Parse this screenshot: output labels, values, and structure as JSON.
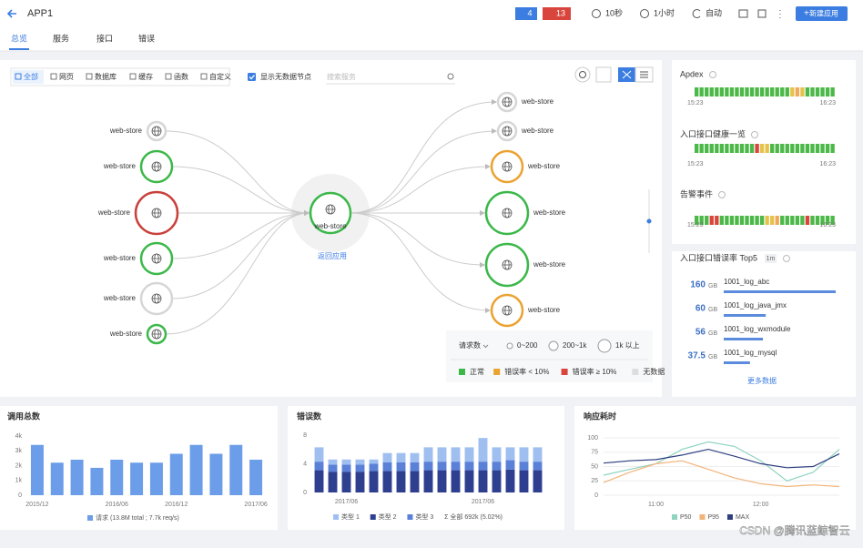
{
  "header": {
    "title": "APP1",
    "badge_info": "4",
    "badge_alert": "13",
    "refresh": "10秒",
    "range": "1小时",
    "auto": "自动",
    "new_button": "新建应用"
  },
  "tabs": [
    "总览",
    "服务",
    "接口",
    "错误"
  ],
  "topology": {
    "filters": [
      "全部",
      "网页",
      "数据库",
      "缓存",
      "函数",
      "自定义"
    ],
    "show_empty": "显示无数据节点",
    "search_placeholder": "搜索服务",
    "center": {
      "label": "web-store",
      "color": "#3cb84a"
    },
    "back": "返回应用",
    "left_nodes": [
      {
        "label": "web-store",
        "color": "#d6d6d6"
      },
      {
        "label": "web-store",
        "color": "#3cb84a"
      },
      {
        "label": "web-store",
        "color": "#c9413b"
      },
      {
        "label": "web-store",
        "color": "#3cb84a"
      },
      {
        "label": "web-store",
        "color": "#d6d6d6"
      },
      {
        "label": "web-store",
        "color": "#3cb84a"
      }
    ],
    "right_nodes": [
      {
        "label": "web-store",
        "color": "#d6d6d6"
      },
      {
        "label": "web-store",
        "color": "#d6d6d6"
      },
      {
        "label": "web-store",
        "color": "#eba22f"
      },
      {
        "label": "web-store",
        "color": "#3cb84a"
      },
      {
        "label": "web-store",
        "color": "#3cb84a"
      },
      {
        "label": "web-store",
        "color": "#eba22f"
      }
    ],
    "legend": {
      "metric": "请求数",
      "sizes": [
        "0~200",
        "200~1k",
        "1k 以上"
      ],
      "statuses": [
        {
          "label": "正常",
          "color": "#3cb84a"
        },
        {
          "label": "错误率 < 10%",
          "color": "#eba22f"
        },
        {
          "label": "错误率 ≥ 10%",
          "color": "#d9453d"
        },
        {
          "label": "无数据",
          "color": "#dddddd"
        }
      ]
    }
  },
  "side": {
    "strips": [
      {
        "title": "Apdex",
        "start": "15:23",
        "end": "16:23",
        "cells": [
          "#4cb848",
          "#4cb848",
          "#4cb848",
          "#4cb848",
          "#4cb848",
          "#4cb848",
          "#4cb848",
          "#4cb848",
          "#4cb848",
          "#4cb848",
          "#4cb848",
          "#4cb848",
          "#4cb848",
          "#4cb848",
          "#4cb848",
          "#4cb848",
          "#4cb848",
          "#4cb848",
          "#4cb848",
          "#e6c24a",
          "#f0a85a",
          "#e6c24a",
          "#4cb848",
          "#4cb848",
          "#4cb848",
          "#4cb848",
          "#4cb848",
          "#4cb848"
        ]
      },
      {
        "title": "入口接口健康一览",
        "start": "15:23",
        "end": "16:23",
        "cells": [
          "#4cb848",
          "#4cb848",
          "#4cb848",
          "#4cb848",
          "#4cb848",
          "#4cb848",
          "#4cb848",
          "#4cb848",
          "#4cb848",
          "#4cb848",
          "#4cb848",
          "#4cb848",
          "#d9453d",
          "#e6c24a",
          "#e6c24a",
          "#4cb848",
          "#4cb848",
          "#4cb848",
          "#4cb848",
          "#4cb848",
          "#4cb848",
          "#4cb848",
          "#4cb848",
          "#4cb848",
          "#4cb848",
          "#4cb848",
          "#4cb848",
          "#4cb848"
        ]
      },
      {
        "title": "告警事件",
        "start": "15:23",
        "end": "16:23",
        "cells": [
          "#4cb848",
          "#4cb848",
          "#4cb848",
          "#d9453d",
          "#d9453d",
          "#4cb848",
          "#4cb848",
          "#4cb848",
          "#4cb848",
          "#4cb848",
          "#4cb848",
          "#4cb848",
          "#4cb848",
          "#4cb848",
          "#e6c24a",
          "#e6c24a",
          "#f0a85a",
          "#4cb848",
          "#4cb848",
          "#4cb848",
          "#4cb848",
          "#4cb848",
          "#d9453d",
          "#4cb848",
          "#4cb848",
          "#4cb848",
          "#4cb848",
          "#4cb848"
        ]
      }
    ],
    "top5": {
      "title": "入口接口错误率 Top5",
      "badge": "1m",
      "unit": "GB",
      "rows": [
        {
          "value": 160,
          "name": "1001_log_abc"
        },
        {
          "value": 60,
          "name": "1001_log_java_jmx"
        },
        {
          "value": 56,
          "name": "1001_log_wxmodule"
        },
        {
          "value": 37.5,
          "name": "1001_log_mysql"
        }
      ],
      "more": "更多数据"
    }
  },
  "chart_data": [
    {
      "type": "bar",
      "title": "调用总数",
      "categories": [
        "2015/12",
        null,
        null,
        null,
        "2016/06",
        null,
        null,
        "2016/12",
        null,
        null,
        null,
        "2017/06"
      ],
      "series": [
        {
          "name": "请求 (13.8M total ; 7.7k req/s)",
          "color": "#6b9de8",
          "values": [
            3400,
            2200,
            2400,
            1850,
            2400,
            2200,
            2200,
            2800,
            3400,
            2800,
            3400,
            2400
          ]
        }
      ],
      "ylim": [
        0,
        4000
      ],
      "yticks": [
        0,
        {
          "value": 1000,
          "label": "1k"
        },
        {
          "value": 2000,
          "label": "2k"
        },
        {
          "value": 3000,
          "label": "3k"
        },
        {
          "value": 4000,
          "label": "4k"
        }
      ],
      "grid": false
    },
    {
      "type": "stacked_bar",
      "title": "错误数",
      "categories": [
        null,
        null,
        "2017/06",
        null,
        null,
        null,
        null,
        null,
        null,
        null,
        null,
        null,
        "2017/06",
        null,
        null,
        null,
        null
      ],
      "series": [
        {
          "name": "类型 1",
          "color": "#9fbff0",
          "values": [
            2.0,
            0.7,
            0.7,
            0.7,
            0.6,
            1.3,
            1.3,
            1.3,
            2.0,
            2.0,
            2.0,
            2.0,
            3.3,
            2.0,
            1.8,
            2.0,
            2.0
          ]
        },
        {
          "name": "类型 2",
          "color": "#2f3f8f",
          "values": [
            3.1,
            2.9,
            2.9,
            2.9,
            3.0,
            3.0,
            3.0,
            3.0,
            3.1,
            3.1,
            3.1,
            3.1,
            3.1,
            3.1,
            3.2,
            3.1,
            3.1
          ]
        },
        {
          "name": "类型 3",
          "color": "#5b80d8",
          "values": [
            1.2,
            1.0,
            1.0,
            1.0,
            1.0,
            1.2,
            1.2,
            1.2,
            1.2,
            1.2,
            1.2,
            1.2,
            1.2,
            1.2,
            1.3,
            1.2,
            1.2
          ]
        }
      ],
      "total_label": "Σ 全部 692k (5.02%)",
      "ylim": [
        0,
        8
      ],
      "yticks": [
        0,
        4,
        8
      ],
      "grid": false
    },
    {
      "type": "line",
      "title": "响应耗时",
      "categories": [
        null,
        null,
        "11:00",
        null,
        null,
        null,
        "12:00",
        null,
        null,
        null
      ],
      "series": [
        {
          "name": "P50",
          "color": "#8fd3c1",
          "values": [
            35,
            45,
            55,
            80,
            93,
            85,
            60,
            25,
            40,
            80
          ]
        },
        {
          "name": "P95",
          "color": "#f3b37a",
          "values": [
            22,
            40,
            55,
            60,
            45,
            30,
            20,
            15,
            18,
            15
          ]
        },
        {
          "name": "MAX",
          "color": "#2e3f7f",
          "values": [
            56,
            60,
            62,
            70,
            80,
            68,
            55,
            48,
            50,
            72
          ]
        }
      ],
      "ylim": [
        0,
        100
      ],
      "yticks": [
        0,
        25,
        50,
        75,
        100
      ],
      "grid": true
    }
  ],
  "watermark": "CSDN @腾讯蓝鲸智云"
}
